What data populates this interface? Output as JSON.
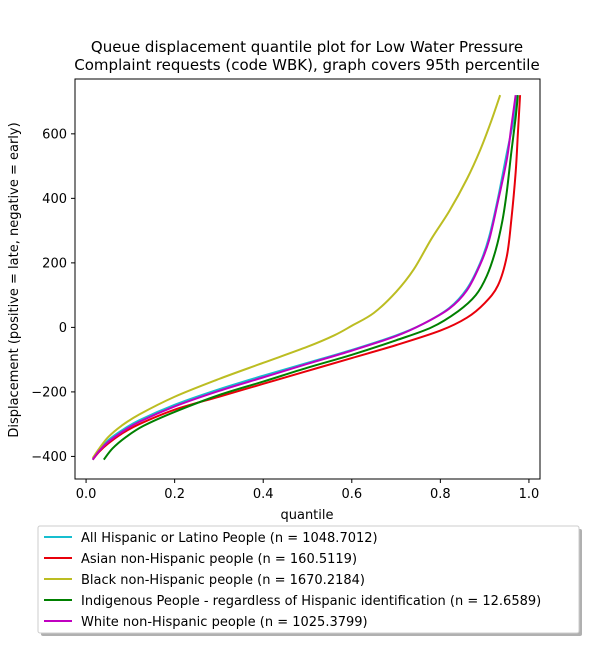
{
  "chart_data": {
    "type": "line",
    "title_lines": [
      "Queue displacement quantile plot for Low Water Pressure",
      "Complaint  requests (code WBK), graph covers 95th percentile"
    ],
    "xlabel": "quantile",
    "ylabel": "Displacement (positive = late, negative = early)",
    "xlim": [
      -0.025,
      1.025
    ],
    "ylim": [
      -470,
      770
    ],
    "xticks": [
      0.0,
      0.2,
      0.4,
      0.6,
      0.8,
      1.0
    ],
    "xtick_labels": [
      "0.0",
      "0.2",
      "0.4",
      "0.6",
      "0.8",
      "1.0"
    ],
    "yticks": [
      -400,
      -200,
      0,
      200,
      400,
      600
    ],
    "ytick_labels": [
      "−400",
      "−200",
      "0",
      "200",
      "400",
      "600"
    ],
    "grid": false,
    "legend_placement": "below plot",
    "series": [
      {
        "name": "All Hispanic or Latino People (n = 1048.7012)",
        "color": "#17becf",
        "points": [
          [
            0.015,
            -410
          ],
          [
            0.03,
            -380
          ],
          [
            0.05,
            -350
          ],
          [
            0.08,
            -320
          ],
          [
            0.12,
            -288
          ],
          [
            0.2,
            -240
          ],
          [
            0.3,
            -192
          ],
          [
            0.4,
            -150
          ],
          [
            0.5,
            -110
          ],
          [
            0.6,
            -70
          ],
          [
            0.7,
            -25
          ],
          [
            0.76,
            10
          ],
          [
            0.82,
            60
          ],
          [
            0.86,
            120
          ],
          [
            0.89,
            200
          ],
          [
            0.91,
            280
          ],
          [
            0.93,
            400
          ],
          [
            0.95,
            540
          ],
          [
            0.965,
            640
          ],
          [
            0.973,
            720
          ]
        ]
      },
      {
        "name": "Asian non-Hispanic people (n = 160.5119)",
        "color": "#e8000b",
        "points": [
          [
            0.015,
            -410
          ],
          [
            0.03,
            -385
          ],
          [
            0.05,
            -360
          ],
          [
            0.08,
            -330
          ],
          [
            0.12,
            -300
          ],
          [
            0.2,
            -255
          ],
          [
            0.3,
            -215
          ],
          [
            0.4,
            -175
          ],
          [
            0.5,
            -135
          ],
          [
            0.6,
            -95
          ],
          [
            0.7,
            -55
          ],
          [
            0.8,
            -10
          ],
          [
            0.86,
            30
          ],
          [
            0.9,
            75
          ],
          [
            0.93,
            130
          ],
          [
            0.95,
            220
          ],
          [
            0.96,
            330
          ],
          [
            0.97,
            480
          ],
          [
            0.975,
            600
          ],
          [
            0.98,
            720
          ]
        ]
      },
      {
        "name": "Black non-Hispanic people (n = 1670.2184)",
        "color": "#bcbd22",
        "points": [
          [
            0.015,
            -405
          ],
          [
            0.03,
            -375
          ],
          [
            0.05,
            -340
          ],
          [
            0.08,
            -305
          ],
          [
            0.12,
            -270
          ],
          [
            0.2,
            -215
          ],
          [
            0.3,
            -160
          ],
          [
            0.4,
            -110
          ],
          [
            0.5,
            -60
          ],
          [
            0.56,
            -25
          ],
          [
            0.6,
            5
          ],
          [
            0.65,
            45
          ],
          [
            0.7,
            110
          ],
          [
            0.74,
            180
          ],
          [
            0.78,
            275
          ],
          [
            0.82,
            360
          ],
          [
            0.86,
            460
          ],
          [
            0.89,
            550
          ],
          [
            0.915,
            640
          ],
          [
            0.935,
            720
          ]
        ]
      },
      {
        "name": "Indigenous People - regardless of Hispanic identification (n = 12.6589)",
        "color": "#008000",
        "points": [
          [
            0.04,
            -410
          ],
          [
            0.06,
            -375
          ],
          [
            0.09,
            -340
          ],
          [
            0.13,
            -305
          ],
          [
            0.2,
            -262
          ],
          [
            0.3,
            -210
          ],
          [
            0.4,
            -168
          ],
          [
            0.5,
            -125
          ],
          [
            0.6,
            -85
          ],
          [
            0.7,
            -40
          ],
          [
            0.78,
            0
          ],
          [
            0.84,
            50
          ],
          [
            0.88,
            100
          ],
          [
            0.905,
            160
          ],
          [
            0.925,
            240
          ],
          [
            0.94,
            330
          ],
          [
            0.95,
            420
          ],
          [
            0.96,
            540
          ],
          [
            0.97,
            650
          ],
          [
            0.975,
            720
          ]
        ]
      },
      {
        "name": "White non-Hispanic people (n = 1025.3799)",
        "color": "#c000c0",
        "points": [
          [
            0.015,
            -410
          ],
          [
            0.03,
            -382
          ],
          [
            0.05,
            -355
          ],
          [
            0.08,
            -325
          ],
          [
            0.12,
            -293
          ],
          [
            0.2,
            -245
          ],
          [
            0.3,
            -197
          ],
          [
            0.4,
            -155
          ],
          [
            0.5,
            -113
          ],
          [
            0.6,
            -72
          ],
          [
            0.7,
            -27
          ],
          [
            0.76,
            10
          ],
          [
            0.82,
            58
          ],
          [
            0.86,
            115
          ],
          [
            0.89,
            195
          ],
          [
            0.91,
            270
          ],
          [
            0.93,
            390
          ],
          [
            0.95,
            520
          ],
          [
            0.96,
            620
          ],
          [
            0.97,
            720
          ]
        ]
      }
    ]
  }
}
